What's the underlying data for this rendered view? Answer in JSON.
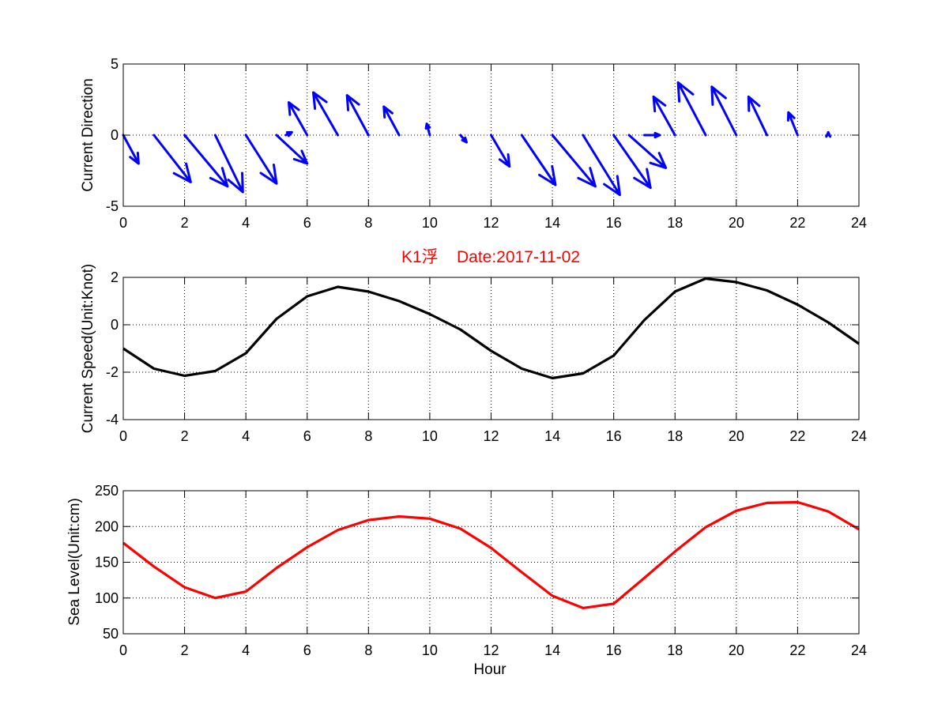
{
  "colors": {
    "arrows": "#0000ff",
    "speed_line": "#000000",
    "sea_line": "#ff0000",
    "title": "#ff0000",
    "grid": "#000000"
  },
  "chart_data": [
    {
      "type": "quiver",
      "ylabel": "Current Direction",
      "xlim": [
        0,
        24
      ],
      "ylim": [
        -5,
        5
      ],
      "x_ticks": [
        0,
        2,
        4,
        6,
        8,
        10,
        12,
        14,
        16,
        18,
        20,
        22,
        24
      ],
      "y_ticks": [
        -5,
        0,
        5
      ],
      "grid": true,
      "arrows": [
        {
          "x": 0,
          "u": 0.5,
          "v": -2.0
        },
        {
          "x": 1,
          "u": 1.2,
          "v": -3.3
        },
        {
          "x": 2,
          "u": 1.4,
          "v": -3.6
        },
        {
          "x": 3,
          "u": 0.9,
          "v": -4.0
        },
        {
          "x": 4,
          "u": 1.0,
          "v": -3.4
        },
        {
          "x": 5,
          "u": 1.0,
          "v": -2.0
        },
        {
          "x": 5.3,
          "u": 0.2,
          "v": 0.2
        },
        {
          "x": 6,
          "u": -0.6,
          "v": 2.3
        },
        {
          "x": 7,
          "u": -0.8,
          "v": 3.0
        },
        {
          "x": 8,
          "u": -0.7,
          "v": 2.8
        },
        {
          "x": 9,
          "u": -0.5,
          "v": 2.0
        },
        {
          "x": 10,
          "u": -0.1,
          "v": 0.8
        },
        {
          "x": 11,
          "u": 0.2,
          "v": -0.5
        },
        {
          "x": 12,
          "u": 0.6,
          "v": -2.2
        },
        {
          "x": 13,
          "u": 1.1,
          "v": -3.5
        },
        {
          "x": 14,
          "u": 1.4,
          "v": -3.6
        },
        {
          "x": 15,
          "u": 1.2,
          "v": -4.2
        },
        {
          "x": 16,
          "u": 1.2,
          "v": -3.7
        },
        {
          "x": 16.5,
          "u": 1.2,
          "v": -2.3
        },
        {
          "x": 17,
          "u": 0.5,
          "v": 0.0
        },
        {
          "x": 18,
          "u": -0.7,
          "v": 2.7
        },
        {
          "x": 19,
          "u": -0.9,
          "v": 3.7
        },
        {
          "x": 20,
          "u": -0.8,
          "v": 3.4
        },
        {
          "x": 21,
          "u": -0.6,
          "v": 2.7
        },
        {
          "x": 22,
          "u": -0.3,
          "v": 1.6
        },
        {
          "x": 23,
          "u": 0.0,
          "v": 0.2
        }
      ]
    },
    {
      "type": "line",
      "title": "K1浮    Date:2017-11-02",
      "ylabel": "Current Speed(Unit:Knot)",
      "xlim": [
        0,
        24
      ],
      "ylim": [
        -4,
        2
      ],
      "x_ticks": [
        0,
        2,
        4,
        6,
        8,
        10,
        12,
        14,
        16,
        18,
        20,
        22,
        24
      ],
      "y_ticks": [
        -4,
        -2,
        0,
        2
      ],
      "grid": true,
      "x": [
        0,
        1,
        2,
        3,
        4,
        5,
        6,
        7,
        8,
        9,
        10,
        11,
        12,
        13,
        14,
        15,
        16,
        17,
        18,
        19,
        20,
        21,
        22,
        23,
        24
      ],
      "y": [
        -1.0,
        -1.85,
        -2.15,
        -1.95,
        -1.2,
        0.25,
        1.2,
        1.6,
        1.4,
        1.0,
        0.45,
        -0.2,
        -1.1,
        -1.85,
        -2.25,
        -2.05,
        -1.3,
        0.2,
        1.4,
        1.95,
        1.8,
        1.45,
        0.85,
        0.1,
        -0.8
      ]
    },
    {
      "type": "line",
      "xlabel": "Hour",
      "ylabel": "Sea Level(Unit:cm)",
      "xlim": [
        0,
        24
      ],
      "ylim": [
        50,
        250
      ],
      "x_ticks": [
        0,
        2,
        4,
        6,
        8,
        10,
        12,
        14,
        16,
        18,
        20,
        22,
        24
      ],
      "y_ticks": [
        50,
        100,
        150,
        200,
        250
      ],
      "grid": true,
      "x": [
        0,
        1,
        2,
        3,
        4,
        5,
        6,
        7,
        8,
        9,
        10,
        11,
        12,
        13,
        14,
        15,
        16,
        17,
        18,
        19,
        20,
        21,
        22,
        23,
        24
      ],
      "y": [
        177,
        144,
        115,
        100,
        109,
        142,
        171,
        195,
        209,
        214,
        211,
        197,
        170,
        136,
        103,
        86,
        92,
        128,
        165,
        199,
        222,
        233,
        234,
        221,
        196
      ]
    }
  ]
}
